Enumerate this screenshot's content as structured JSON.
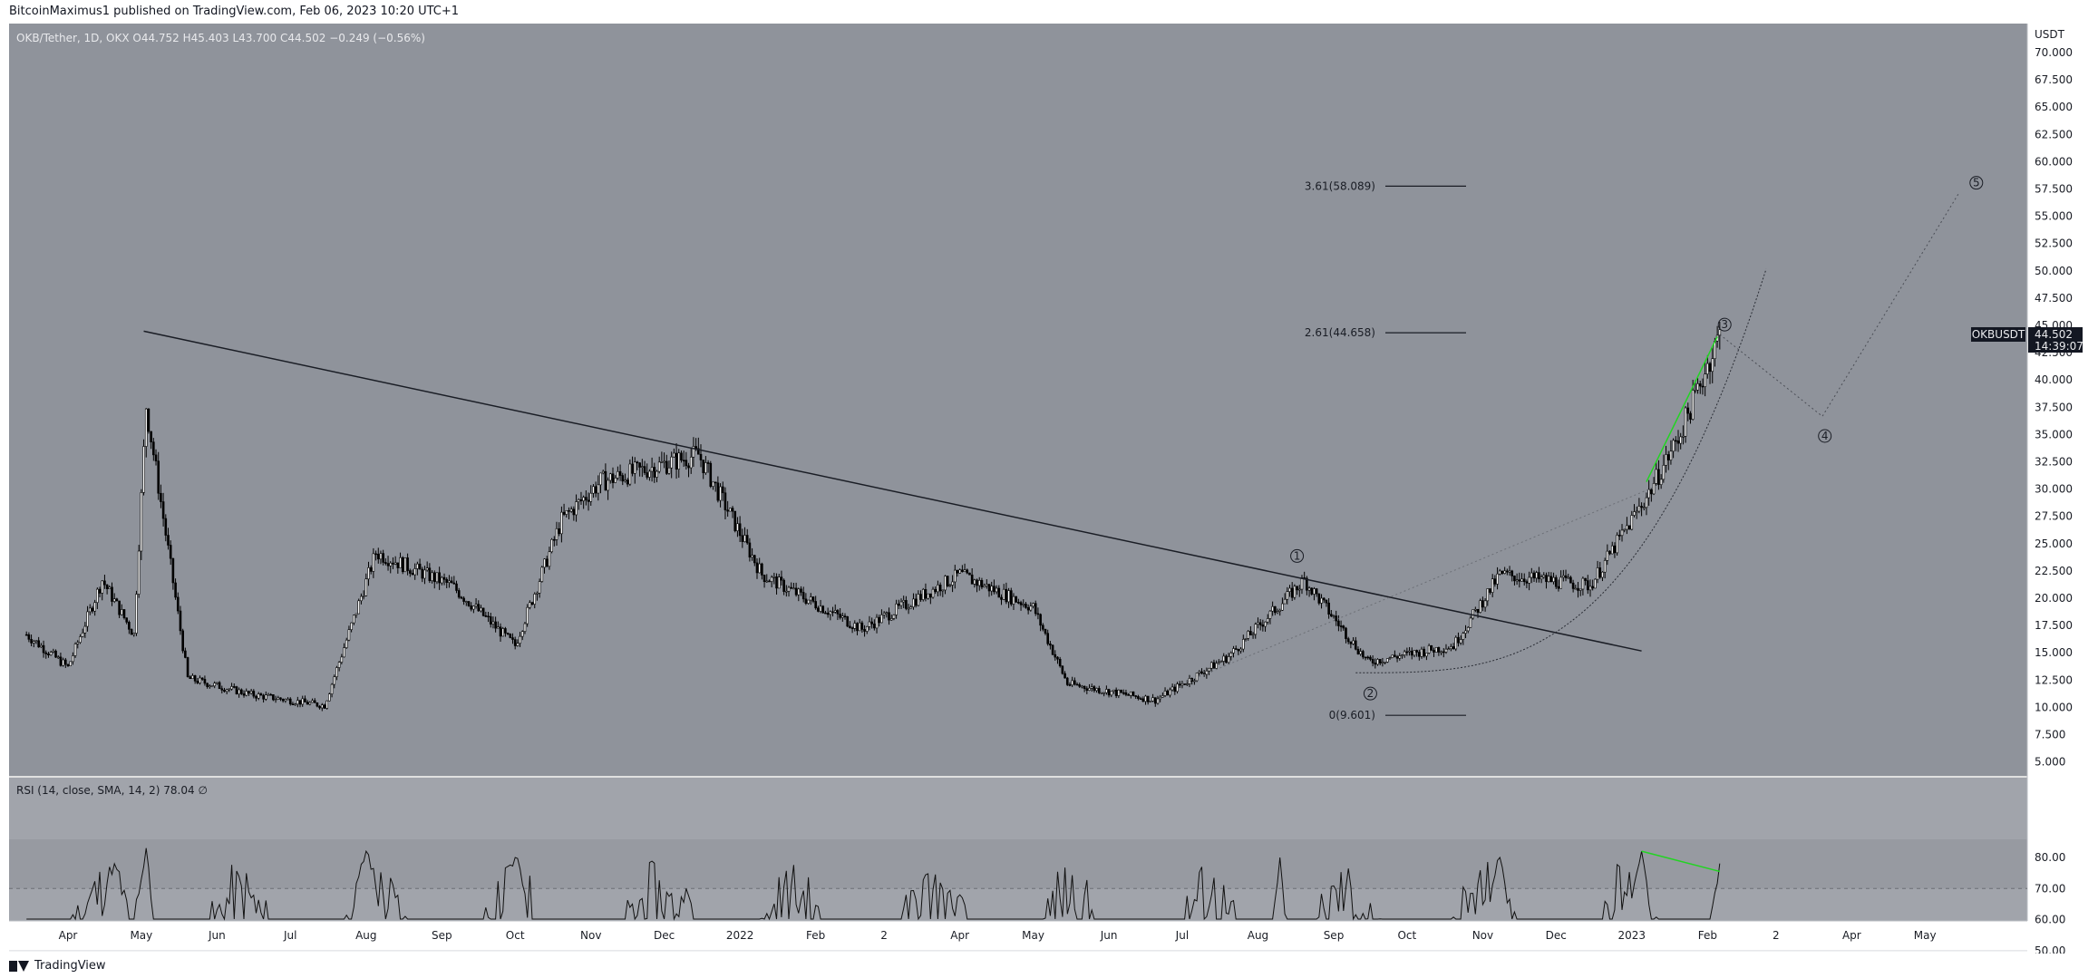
{
  "header": {
    "publisher": "BitcoinMaximus1 published on TradingView.com, Feb 06, 2023 10:20 UTC+1"
  },
  "footer": {
    "brand": "TradingView",
    "logo_icon": "tradingview-logo-icon"
  },
  "legend": {
    "symbol": "OKB/Tether, 1D, OKX",
    "open_label": "O",
    "open": "44.752",
    "high_label": "H",
    "high": "45.403",
    "low_label": "L",
    "low": "43.700",
    "close_label": "C",
    "close": "44.502",
    "change": "−0.249 (−0.56%)"
  },
  "price_axis": {
    "unit": "USDT",
    "ticks": [
      "70.000",
      "67.500",
      "65.000",
      "62.500",
      "60.000",
      "57.500",
      "55.000",
      "52.500",
      "50.000",
      "47.500",
      "45.000",
      "42.500",
      "40.000",
      "37.500",
      "35.000",
      "32.500",
      "30.000",
      "27.500",
      "25.000",
      "22.500",
      "20.000",
      "17.500",
      "15.000",
      "12.500",
      "10.000",
      "7.500",
      "5.000"
    ]
  },
  "price_tag": {
    "symbol": "OKBUSDT",
    "price": "44.502",
    "countdown": "14:39:07"
  },
  "rsi": {
    "legend": "RSI (14, close, SMA, 14, 2)",
    "value": "78.04",
    "extra": "∅",
    "ticks": [
      "80.00",
      "70.00",
      "60.00",
      "50.00"
    ]
  },
  "time_axis": {
    "labels": [
      "Apr",
      "May",
      "Jun",
      "Jul",
      "Aug",
      "Sep",
      "Oct",
      "Nov",
      "Dec",
      "2022",
      "Feb",
      "2",
      "Apr",
      "May",
      "Jun",
      "Jul",
      "Aug",
      "Sep",
      "Oct",
      "Nov",
      "Dec",
      "2023",
      "Feb",
      "2",
      "Apr",
      "May"
    ]
  },
  "fib": [
    {
      "label": "3.61(58.089)",
      "value": 58.089
    },
    {
      "label": "2.61(44.658)",
      "value": 44.658
    },
    {
      "label": "0(9.601)",
      "value": 9.601
    }
  ],
  "waves": [
    {
      "label": "1"
    },
    {
      "label": "2"
    },
    {
      "label": "3"
    },
    {
      "label": "4"
    },
    {
      "label": "5"
    }
  ],
  "colors": {
    "chart_bg": "#8f939b",
    "rsi_bg": "#a1a4ab",
    "rsi_band": "#979aa1",
    "candle": "#000000",
    "green": "#22d422",
    "tag_bg": "#131722"
  },
  "chart_data": {
    "type": "candlestick",
    "symbol": "OKB/Tether",
    "ylim": [
      4,
      72
    ],
    "approx_close": [
      {
        "date": "2021-03-15",
        "close": 17.0
      },
      {
        "date": "2021-04-01",
        "close": 14.0
      },
      {
        "date": "2021-04-15",
        "close": 22.0
      },
      {
        "date": "2021-04-28",
        "close": 17.0
      },
      {
        "date": "2021-05-03",
        "close": 38.0
      },
      {
        "date": "2021-05-20",
        "close": 13.0
      },
      {
        "date": "2021-06-15",
        "close": 11.5
      },
      {
        "date": "2021-07-15",
        "close": 10.5
      },
      {
        "date": "2021-08-05",
        "close": 24.5
      },
      {
        "date": "2021-09-05",
        "close": 21.5
      },
      {
        "date": "2021-10-01",
        "close": 16.0
      },
      {
        "date": "2021-10-20",
        "close": 27.5
      },
      {
        "date": "2021-11-05",
        "close": 31.0
      },
      {
        "date": "2021-12-15",
        "close": 33.5
      },
      {
        "date": "2022-01-10",
        "close": 22.5
      },
      {
        "date": "2022-02-20",
        "close": 17.5
      },
      {
        "date": "2022-04-01",
        "close": 22.5
      },
      {
        "date": "2022-05-01",
        "close": 19.5
      },
      {
        "date": "2022-05-15",
        "close": 12.5
      },
      {
        "date": "2022-06-20",
        "close": 11.0
      },
      {
        "date": "2022-07-20",
        "close": 15.0
      },
      {
        "date": "2022-08-20",
        "close": 22.0
      },
      {
        "date": "2022-09-15",
        "close": 14.5
      },
      {
        "date": "2022-10-20",
        "close": 16.0
      },
      {
        "date": "2022-11-08",
        "close": 22.5
      },
      {
        "date": "2022-12-15",
        "close": 21.5
      },
      {
        "date": "2023-01-08",
        "close": 30.0
      },
      {
        "date": "2023-01-20",
        "close": 35.0
      },
      {
        "date": "2023-02-06",
        "close": 44.502
      }
    ],
    "rsi_approx": [
      {
        "date": "2021-04-20",
        "value": 78
      },
      {
        "date": "2021-05-03",
        "value": 83
      },
      {
        "date": "2021-08-01",
        "value": 82
      },
      {
        "date": "2021-10-01",
        "value": 80
      },
      {
        "date": "2021-12-10",
        "value": 70
      },
      {
        "date": "2022-04-01",
        "value": 68
      },
      {
        "date": "2022-08-10",
        "value": 80
      },
      {
        "date": "2022-11-08",
        "value": 80
      },
      {
        "date": "2023-01-05",
        "value": 82
      },
      {
        "date": "2023-02-06",
        "value": 78.04
      }
    ]
  }
}
